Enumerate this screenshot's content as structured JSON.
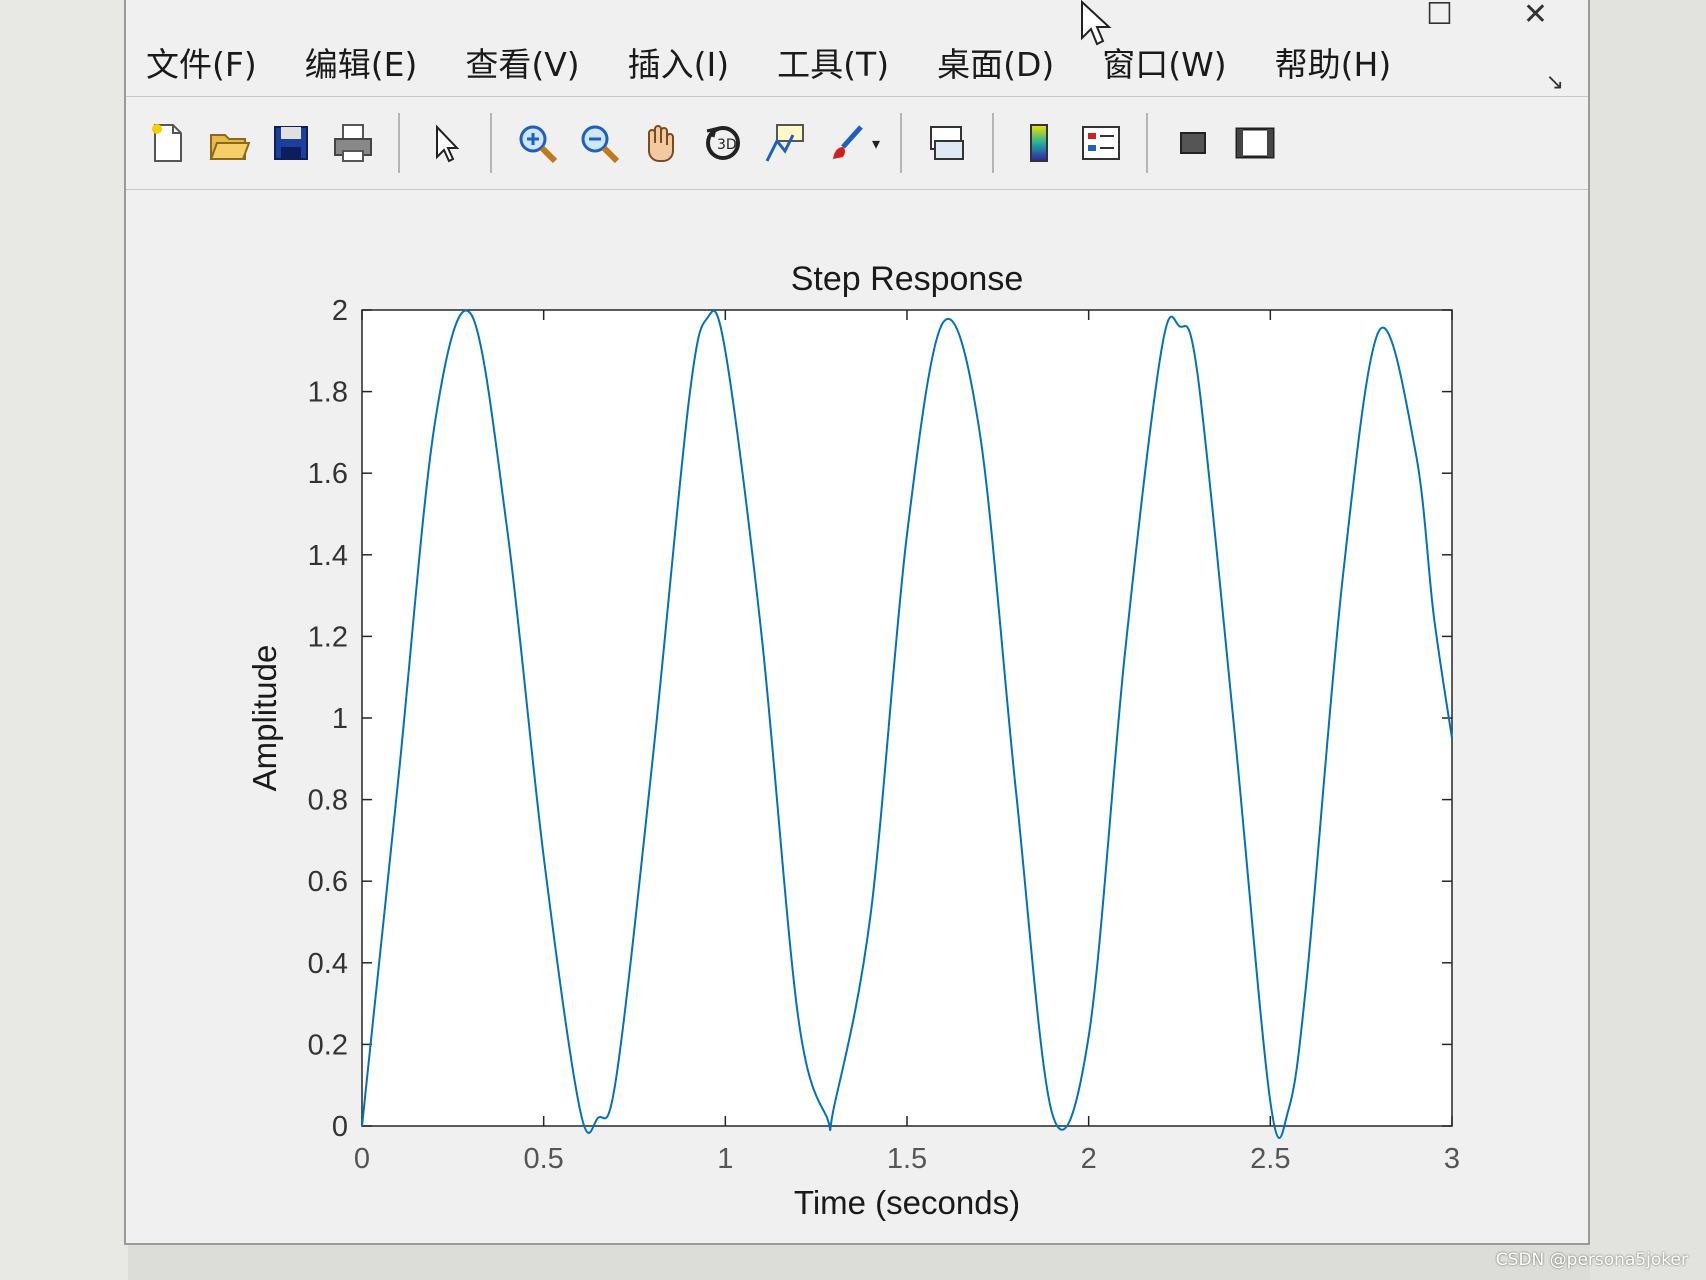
{
  "window": {
    "controls": {
      "maximize": "☐",
      "close": "✕"
    }
  },
  "menu": [
    {
      "label": "文件(F)"
    },
    {
      "label": "编辑(E)"
    },
    {
      "label": "查看(V)"
    },
    {
      "label": "插入(I)"
    },
    {
      "label": "工具(T)"
    },
    {
      "label": "桌面(D)"
    },
    {
      "label": "窗口(W)"
    },
    {
      "label": "帮助(H)"
    }
  ],
  "toolbar": {
    "icons": [
      "new-figure-icon",
      "open-file-icon",
      "save-icon",
      "print-icon",
      "select-pointer-icon",
      "zoom-in-icon",
      "zoom-out-icon",
      "pan-hand-icon",
      "rotate-3d-icon",
      "data-cursor-icon",
      "brush-icon",
      "link-plot-icon",
      "colorbar-icon",
      "legend-icon",
      "hide-plot-tools-icon",
      "show-plot-tools-icon"
    ]
  },
  "chart_data": {
    "type": "line",
    "title": "Step Response",
    "xlabel": "Time (seconds)",
    "ylabel": "Amplitude",
    "xlim": [
      0,
      3
    ],
    "ylim": [
      0,
      2
    ],
    "x_ticks": [
      "0",
      "0.5",
      "1",
      "1.5",
      "2",
      "2.5",
      "3"
    ],
    "y_ticks": [
      "0",
      "0.2",
      "0.4",
      "0.6",
      "0.8",
      "1",
      "1.2",
      "1.4",
      "1.6",
      "1.8",
      "2"
    ],
    "grid": false,
    "line_color": "#0072bd",
    "series": [
      {
        "x": [
          0,
          0.1,
          0.2,
          0.3,
          0.4,
          0.5,
          0.6,
          0.65,
          0.7,
          0.8,
          0.9,
          0.95,
          1.0,
          1.1,
          1.2,
          1.28,
          1.3,
          1.4,
          1.5,
          1.6,
          1.7,
          1.8,
          1.9,
          2.0,
          2.1,
          2.2,
          2.25,
          2.3,
          2.4,
          2.5,
          2.55,
          2.6,
          2.7,
          2.8,
          2.9,
          2.95,
          3.0
        ],
        "y": [
          0,
          0.85,
          1.72,
          1.99,
          1.46,
          0.66,
          0.04,
          0.02,
          0.12,
          0.9,
          1.78,
          1.98,
          1.9,
          1.2,
          0.27,
          0.02,
          0.05,
          0.52,
          1.45,
          1.97,
          1.7,
          0.82,
          0.03,
          0.22,
          1.16,
          1.9,
          1.96,
          1.84,
          0.98,
          0.06,
          0.04,
          0.36,
          1.35,
          1.95,
          1.65,
          1.25,
          0.95
        ]
      }
    ]
  },
  "watermark": "CSDN @persona5joker"
}
